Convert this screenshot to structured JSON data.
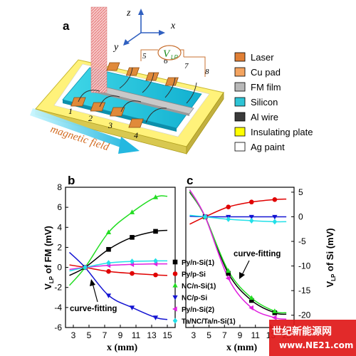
{
  "panels": {
    "a": "a",
    "b": "b",
    "c": "c"
  },
  "schematic": {
    "axes": {
      "z": "z",
      "x": "x",
      "y": "y"
    },
    "voltmeter": {
      "main": "V",
      "sub": "LP"
    },
    "top_pads": [
      "5",
      "6",
      "7",
      "8"
    ],
    "bottom_pads": [
      "1",
      "2",
      "3",
      "4"
    ],
    "field_label": "magnetic field",
    "legend": [
      {
        "label": "Laser",
        "color": "#e07f35"
      },
      {
        "label": "Cu pad",
        "color": "#f4a460"
      },
      {
        "label": "FM film",
        "color": "#b8b8b8"
      },
      {
        "label": "Silicon",
        "color": "#2ec4d6"
      },
      {
        "label": "Al wire",
        "color": "#3a3a3a"
      },
      {
        "label": "Insulating plate",
        "color": "#ffff00"
      },
      {
        "label": "Ag paint",
        "color": "#ffffff"
      }
    ]
  },
  "chart_data": [
    {
      "panel": "b",
      "type": "line",
      "ylabel_main": "V",
      "ylabel_sub": "LP",
      "ylabel_rest": " of FM (mV)",
      "xlabel": "x (mm)",
      "xlim": [
        2,
        16
      ],
      "ylim": [
        -6,
        8
      ],
      "xticks": [
        "3",
        "5",
        "7",
        "9",
        "11",
        "13",
        "15"
      ],
      "yticks": [
        "-6",
        "-4",
        "-2",
        "0",
        "2",
        "4",
        "6",
        "8"
      ],
      "annotation": "curve-fitting",
      "series": [
        {
          "name": "Py/n-Si(1)",
          "color": "#000000",
          "marker": "square",
          "points": [
            [
              4.5,
              0
            ],
            [
              7.5,
              1.8
            ],
            [
              10.5,
              3.0
            ],
            [
              13.5,
              3.6
            ]
          ],
          "curve": [
            [
              2.5,
              -0.8
            ],
            [
              4.5,
              0
            ],
            [
              7.5,
              1.8
            ],
            [
              10.5,
              3.0
            ],
            [
              13.5,
              3.6
            ],
            [
              15,
              3.7
            ]
          ]
        },
        {
          "name": "Py/p-Si",
          "color": "#e00000",
          "marker": "circle",
          "points": [
            [
              4.5,
              0
            ],
            [
              7.5,
              -0.4
            ],
            [
              10.5,
              -0.6
            ],
            [
              13.5,
              -0.75
            ]
          ],
          "curve": [
            [
              2.5,
              0.25
            ],
            [
              4.5,
              0
            ],
            [
              7.5,
              -0.4
            ],
            [
              10.5,
              -0.6
            ],
            [
              13.5,
              -0.75
            ],
            [
              15,
              -0.8
            ]
          ]
        },
        {
          "name": "NC/n-Si(1)",
          "color": "#22dd22",
          "marker": "triangle-up",
          "points": [
            [
              4.5,
              0
            ],
            [
              7.5,
              3.5
            ],
            [
              10.5,
              5.5
            ],
            [
              13.5,
              7.0
            ]
          ],
          "curve": [
            [
              2.5,
              -1.8
            ],
            [
              4.5,
              0
            ],
            [
              7.5,
              3.5
            ],
            [
              10.5,
              5.5
            ],
            [
              13.5,
              7.0
            ],
            [
              15,
              7.1
            ]
          ]
        },
        {
          "name": "NC/p-Si",
          "color": "#1414d2",
          "marker": "triangle-down",
          "points": [
            [
              4.5,
              0
            ],
            [
              7.5,
              -2.8
            ],
            [
              10.5,
              -4.0
            ],
            [
              13.5,
              -5.0
            ]
          ],
          "curve": [
            [
              2.5,
              1.5
            ],
            [
              4.5,
              0
            ],
            [
              7.5,
              -2.8
            ],
            [
              10.5,
              -4.0
            ],
            [
              13.5,
              -5.0
            ],
            [
              15,
              -5.2
            ]
          ]
        },
        {
          "name": "Py/n-Si(2)",
          "color": "#e020e0",
          "marker": "triangle-left",
          "points": [
            [
              4.5,
              0
            ],
            [
              7.5,
              0.2
            ],
            [
              10.5,
              0.3
            ],
            [
              13.5,
              0.35
            ]
          ],
          "curve": [
            [
              2.5,
              -0.2
            ],
            [
              4.5,
              0
            ],
            [
              7.5,
              0.2
            ],
            [
              10.5,
              0.3
            ],
            [
              13.5,
              0.35
            ],
            [
              15,
              0.35
            ]
          ]
        },
        {
          "name": "Ta/NC/Ta/n-Si(1)",
          "color": "#22e0e8",
          "marker": "diamond",
          "points": [
            [
              4.5,
              0
            ],
            [
              7.5,
              0.45
            ],
            [
              10.5,
              0.6
            ],
            [
              13.5,
              0.65
            ]
          ],
          "curve": [
            [
              2.5,
              -0.35
            ],
            [
              4.5,
              0
            ],
            [
              7.5,
              0.45
            ],
            [
              10.5,
              0.6
            ],
            [
              13.5,
              0.65
            ],
            [
              15,
              0.65
            ]
          ]
        }
      ]
    },
    {
      "panel": "c",
      "type": "line",
      "ylabel_main": "V",
      "ylabel_sub": "LP",
      "ylabel_rest": " of Si (mV)",
      "xlabel": "x (mm)",
      "xlim": [
        2,
        16
      ],
      "ylim": [
        -22.5,
        6
      ],
      "xticks": [
        "3",
        "5",
        "7",
        "9",
        "11",
        "13",
        "15"
      ],
      "yticks": [
        "5",
        "0",
        "-5",
        "-10",
        "-15",
        "-20"
      ],
      "annotation": "curve-fitting",
      "series": [
        {
          "name": "Py/n-Si(1)",
          "color": "#000000",
          "marker": "square",
          "points": [
            [
              4.5,
              0
            ],
            [
              7.5,
              -11.5
            ],
            [
              10.5,
              -17.0
            ],
            [
              13.5,
              -19.5
            ]
          ],
          "curve": [
            [
              2.5,
              5.0
            ],
            [
              4.5,
              0
            ],
            [
              7.5,
              -11.5
            ],
            [
              10.5,
              -17.0
            ],
            [
              13.5,
              -19.5
            ],
            [
              15,
              -19.8
            ]
          ]
        },
        {
          "name": "Py/p-Si",
          "color": "#e00000",
          "marker": "circle",
          "points": [
            [
              4.5,
              0
            ],
            [
              7.5,
              2.0
            ],
            [
              10.5,
              3.0
            ],
            [
              13.5,
              3.5
            ]
          ],
          "curve": [
            [
              2.5,
              -1.5
            ],
            [
              4.5,
              0
            ],
            [
              7.5,
              2.0
            ],
            [
              10.5,
              3.0
            ],
            [
              13.5,
              3.5
            ],
            [
              15,
              3.6
            ]
          ]
        },
        {
          "name": "NC/n-Si(1)",
          "color": "#22dd22",
          "marker": "triangle-up",
          "points": [
            [
              4.5,
              0
            ],
            [
              7.5,
              -11.0
            ],
            [
              10.5,
              -16.5
            ],
            [
              13.5,
              -19.2
            ]
          ],
          "curve": [
            [
              2.5,
              5.2
            ],
            [
              4.5,
              0
            ],
            [
              7.5,
              -11.0
            ],
            [
              10.5,
              -16.5
            ],
            [
              13.5,
              -19.2
            ],
            [
              15,
              -19.5
            ]
          ]
        },
        {
          "name": "NC/p-Si",
          "color": "#1414d2",
          "marker": "triangle-down",
          "points": [
            [
              4.5,
              0
            ],
            [
              7.5,
              0
            ],
            [
              10.5,
              0
            ],
            [
              13.5,
              0
            ]
          ],
          "curve": [
            [
              2.5,
              0.1
            ],
            [
              4.5,
              0
            ],
            [
              7.5,
              0
            ],
            [
              10.5,
              0
            ],
            [
              13.5,
              0
            ],
            [
              15,
              0
            ]
          ]
        },
        {
          "name": "Py/n-Si(2)",
          "color": "#e020e0",
          "marker": "triangle-left",
          "points": [
            [
              4.5,
              0
            ],
            [
              7.5,
              -12.5
            ],
            [
              10.5,
              -18.5
            ],
            [
              13.5,
              -20.5
            ]
          ],
          "curve": [
            [
              2.5,
              5.5
            ],
            [
              4.5,
              0
            ],
            [
              7.5,
              -12.5
            ],
            [
              10.5,
              -18.5
            ],
            [
              13.5,
              -20.5
            ],
            [
              15,
              -20.8
            ]
          ]
        },
        {
          "name": "Ta/NC/Ta/n-Si(1)",
          "color": "#22e0e8",
          "marker": "diamond",
          "points": [
            [
              4.5,
              0
            ],
            [
              7.5,
              -0.5
            ],
            [
              10.5,
              -0.8
            ],
            [
              13.5,
              -1.0
            ]
          ],
          "curve": [
            [
              2.5,
              0.3
            ],
            [
              4.5,
              0
            ],
            [
              7.5,
              -0.5
            ],
            [
              10.5,
              -0.8
            ],
            [
              13.5,
              -1.0
            ],
            [
              15,
              -1.0
            ]
          ]
        }
      ]
    }
  ],
  "series_legend": [
    "Py/n-Si(1)",
    "Py/p-Si",
    "NC/n-Si(1)",
    "NC/p-Si",
    "Py/n-Si(2)",
    "Ta/NC/Ta/n-Si(1)"
  ],
  "watermark": {
    "line1": "世纪新能源网",
    "line2": "www.NE21.com"
  }
}
